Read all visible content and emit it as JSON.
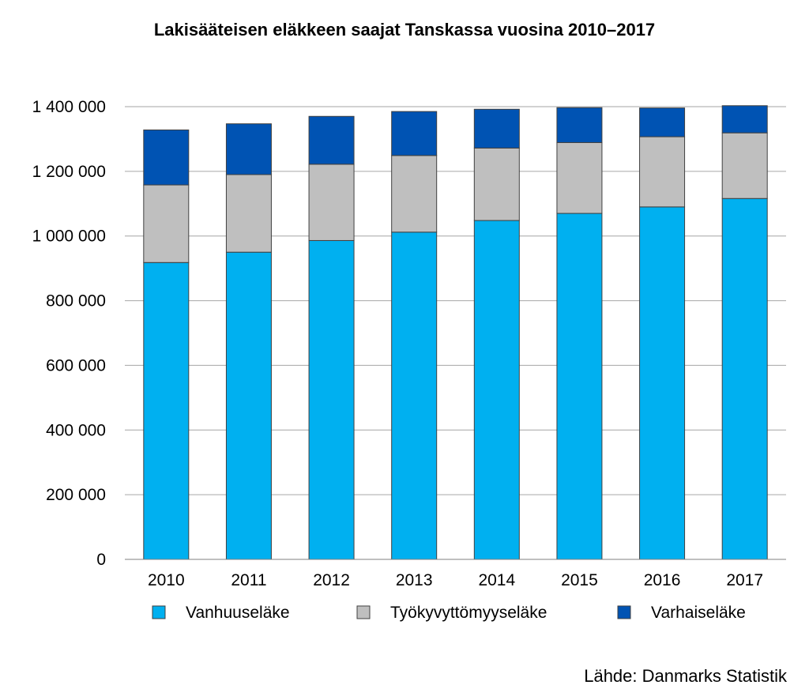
{
  "chart_data": {
    "type": "bar",
    "stacked": true,
    "title": "Lakisääteisen eläkkeen saajat Tanskassa vuosina 2010–2017",
    "xlabel": "",
    "ylabel": "",
    "categories": [
      "2010",
      "2011",
      "2012",
      "2013",
      "2014",
      "2015",
      "2016",
      "2017"
    ],
    "ylim": [
      0,
      1400000
    ],
    "yticks": [
      0,
      200000,
      400000,
      600000,
      800000,
      1000000,
      1200000,
      1400000
    ],
    "ytick_labels": [
      "0",
      "200 000",
      "400 000",
      "600 000",
      "800 000",
      "1 000 000",
      "1 200 000",
      "1 400 000"
    ],
    "grid": true,
    "legend_position": "bottom",
    "series": [
      {
        "name": "Vanhuuseläke",
        "color": "#00B0F0",
        "values": [
          918000,
          950000,
          986000,
          1012000,
          1048000,
          1070000,
          1090000,
          1116000
        ]
      },
      {
        "name": "Työkyvyttömyyseläke",
        "color": "#BFBFBF",
        "values": [
          240000,
          240000,
          236000,
          237000,
          224000,
          219000,
          217000,
          203000
        ]
      },
      {
        "name": "Varhaiseläke",
        "color": "#0053B3",
        "values": [
          170000,
          157000,
          148000,
          136000,
          120000,
          108000,
          89000,
          84000
        ]
      }
    ],
    "source": "Lähde: Danmarks Statistik"
  }
}
